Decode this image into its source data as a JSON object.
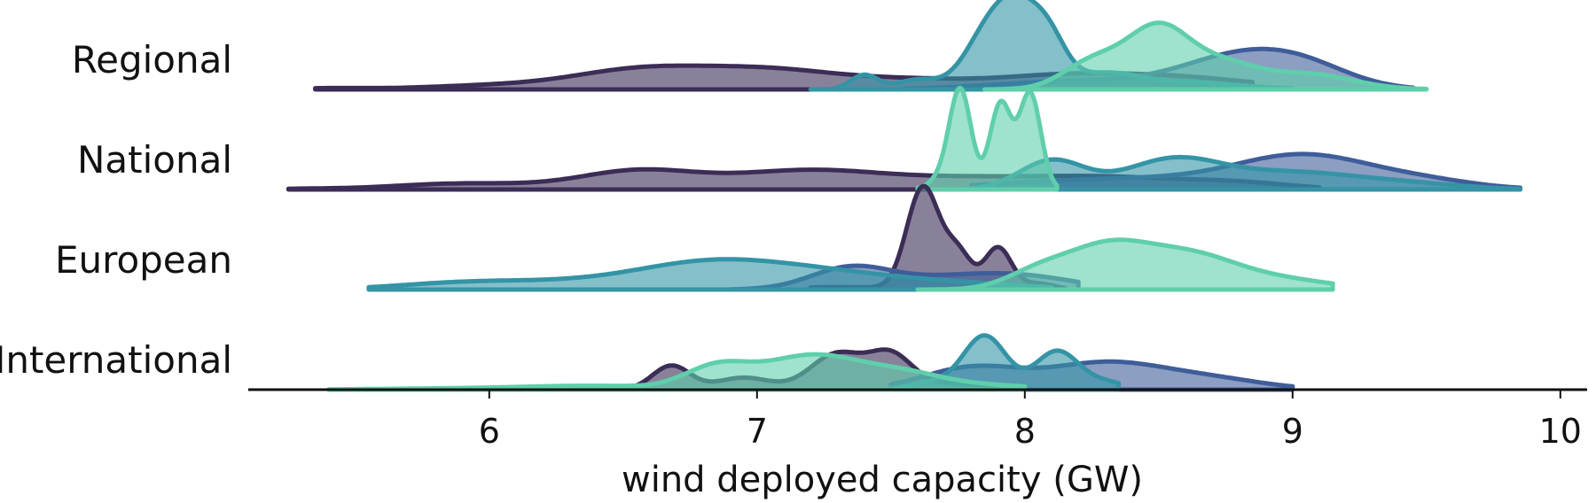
{
  "chart_data": {
    "type": "area",
    "subtype": "ridgeline",
    "xlabel": "wind deployed capacity (GW)",
    "xlim": [
      5.1,
      10.1
    ],
    "xticks": [
      "6",
      "7",
      "8",
      "9",
      "10"
    ],
    "xtick_values": [
      6,
      7,
      8,
      9,
      10
    ],
    "grid": false,
    "legend": "none",
    "colors": [
      "#3b2d56",
      "#3f5d99",
      "#3494a6",
      "#5fcfab"
    ],
    "rows": [
      {
        "label": "Regional",
        "series": [
          {
            "peaks": [
              [
                5.4,
                0.01,
                0.14
              ],
              [
                6.0,
                0.03,
                0.25
              ],
              [
                6.55,
                0.15,
                0.25
              ],
              [
                7.05,
                0.16,
                0.28
              ],
              [
                7.6,
                0.06,
                0.22
              ],
              [
                8.1,
                0.09,
                0.25
              ],
              [
                8.55,
                0.1,
                0.3
              ]
            ],
            "xmin": 5.35,
            "xmax": 8.85
          },
          {
            "peaks": [
              [
                8.2,
                0.07,
                0.3
              ],
              [
                8.8,
                0.26,
                0.22
              ],
              [
                9.05,
                0.14,
                0.18
              ]
            ],
            "xmin": 7.55,
            "xmax": 9.45
          },
          {
            "peaks": [
              [
                7.4,
                0.12,
                0.05
              ],
              [
                7.6,
                0.08,
                0.08
              ],
              [
                7.87,
                0.5,
                0.09
              ],
              [
                7.97,
                0.4,
                0.07
              ],
              [
                8.08,
                0.45,
                0.07
              ],
              [
                8.3,
                0.12,
                0.12
              ],
              [
                8.6,
                0.06,
                0.2
              ]
            ],
            "xmin": 7.2,
            "xmax": 9.0
          },
          {
            "peaks": [
              [
                8.25,
                0.22,
                0.11
              ],
              [
                8.5,
                0.52,
                0.12
              ],
              [
                8.75,
                0.18,
                0.12
              ],
              [
                9.05,
                0.13,
                0.17
              ]
            ],
            "xmin": 7.85,
            "xmax": 9.5
          }
        ]
      },
      {
        "label": "National",
        "series": [
          {
            "peaks": [
              [
                5.3,
                0.005,
                0.14
              ],
              [
                5.9,
                0.05,
                0.25
              ],
              [
                6.55,
                0.15,
                0.22
              ],
              [
                7.2,
                0.16,
                0.3
              ],
              [
                7.8,
                0.07,
                0.25
              ],
              [
                8.3,
                0.1,
                0.28
              ],
              [
                8.8,
                0.05,
                0.2
              ]
            ],
            "xmin": 5.25,
            "xmax": 9.1
          },
          {
            "peaks": [
              [
                8.4,
                0.09,
                0.45
              ],
              [
                9.05,
                0.26,
                0.25
              ],
              [
                9.5,
                0.06,
                0.2
              ]
            ],
            "xmin": 7.8,
            "xmax": 9.85
          },
          {
            "peaks": [
              [
                8.1,
                0.24,
                0.12
              ],
              [
                8.55,
                0.24,
                0.18
              ],
              [
                9.0,
                0.14,
                0.25
              ],
              [
                9.45,
                0.04,
                0.2
              ]
            ],
            "xmin": 7.7,
            "xmax": 9.85
          },
          {
            "peaks": [
              [
                7.76,
                0.8,
                0.04
              ],
              [
                7.91,
                0.72,
                0.04
              ],
              [
                8.02,
                0.8,
                0.04
              ],
              [
                7.7,
                0.1,
                0.05
              ]
            ],
            "xmin": 7.6,
            "xmax": 8.12
          }
        ]
      },
      {
        "label": "European",
        "series": [
          {
            "peaks": [
              [
                7.3,
                0.02,
                0.2
              ],
              [
                7.62,
                0.85,
                0.06
              ],
              [
                7.75,
                0.3,
                0.05
              ],
              [
                7.9,
                0.35,
                0.05
              ],
              [
                8.05,
                0.05,
                0.06
              ]
            ],
            "xmin": 7.2,
            "xmax": 8.15
          },
          {
            "peaks": [
              [
                7.35,
                0.18,
                0.15
              ],
              [
                7.7,
                0.08,
                0.2
              ],
              [
                8.0,
                0.1,
                0.2
              ]
            ],
            "xmin": 6.9,
            "xmax": 8.2
          },
          {
            "peaks": [
              [
                5.9,
                0.05,
                0.25
              ],
              [
                6.35,
                0.05,
                0.3
              ],
              [
                6.85,
                0.22,
                0.28
              ],
              [
                7.3,
                0.1,
                0.25
              ],
              [
                7.75,
                0.05,
                0.25
              ]
            ],
            "xmin": 5.55,
            "xmax": 8.1
          },
          {
            "peaks": [
              [
                8.05,
                0.14,
                0.12
              ],
              [
                8.3,
                0.32,
                0.15
              ],
              [
                8.6,
                0.28,
                0.18
              ],
              [
                8.95,
                0.08,
                0.2
              ]
            ],
            "xmin": 7.6,
            "xmax": 9.15
          }
        ]
      },
      {
        "label": "International",
        "series": [
          {
            "peaks": [
              [
                6.68,
                0.2,
                0.07
              ],
              [
                6.95,
                0.1,
                0.1
              ],
              [
                7.3,
                0.3,
                0.1
              ],
              [
                7.5,
                0.28,
                0.08
              ],
              [
                7.7,
                0.05,
                0.1
              ]
            ],
            "xmin": 6.3,
            "xmax": 7.9
          },
          {
            "peaks": [
              [
                7.8,
                0.18,
                0.18
              ],
              [
                8.3,
                0.22,
                0.22
              ],
              [
                8.7,
                0.08,
                0.2
              ]
            ],
            "xmin": 7.5,
            "xmax": 9.0
          },
          {
            "peaks": [
              [
                7.85,
                0.45,
                0.08
              ],
              [
                8.12,
                0.32,
                0.08
              ],
              [
                8.3,
                0.06,
                0.08
              ],
              [
                7.65,
                0.06,
                0.08
              ]
            ],
            "xmin": 7.5,
            "xmax": 8.35
          },
          {
            "peaks": [
              [
                5.9,
                0.01,
                0.3
              ],
              [
                6.4,
                0.03,
                0.25
              ],
              [
                6.85,
                0.18,
                0.12
              ],
              [
                7.2,
                0.28,
                0.18
              ],
              [
                7.55,
                0.13,
                0.16
              ],
              [
                7.9,
                0.03,
                0.15
              ]
            ],
            "xmin": 5.4,
            "xmax": 8.0
          }
        ]
      }
    ]
  }
}
